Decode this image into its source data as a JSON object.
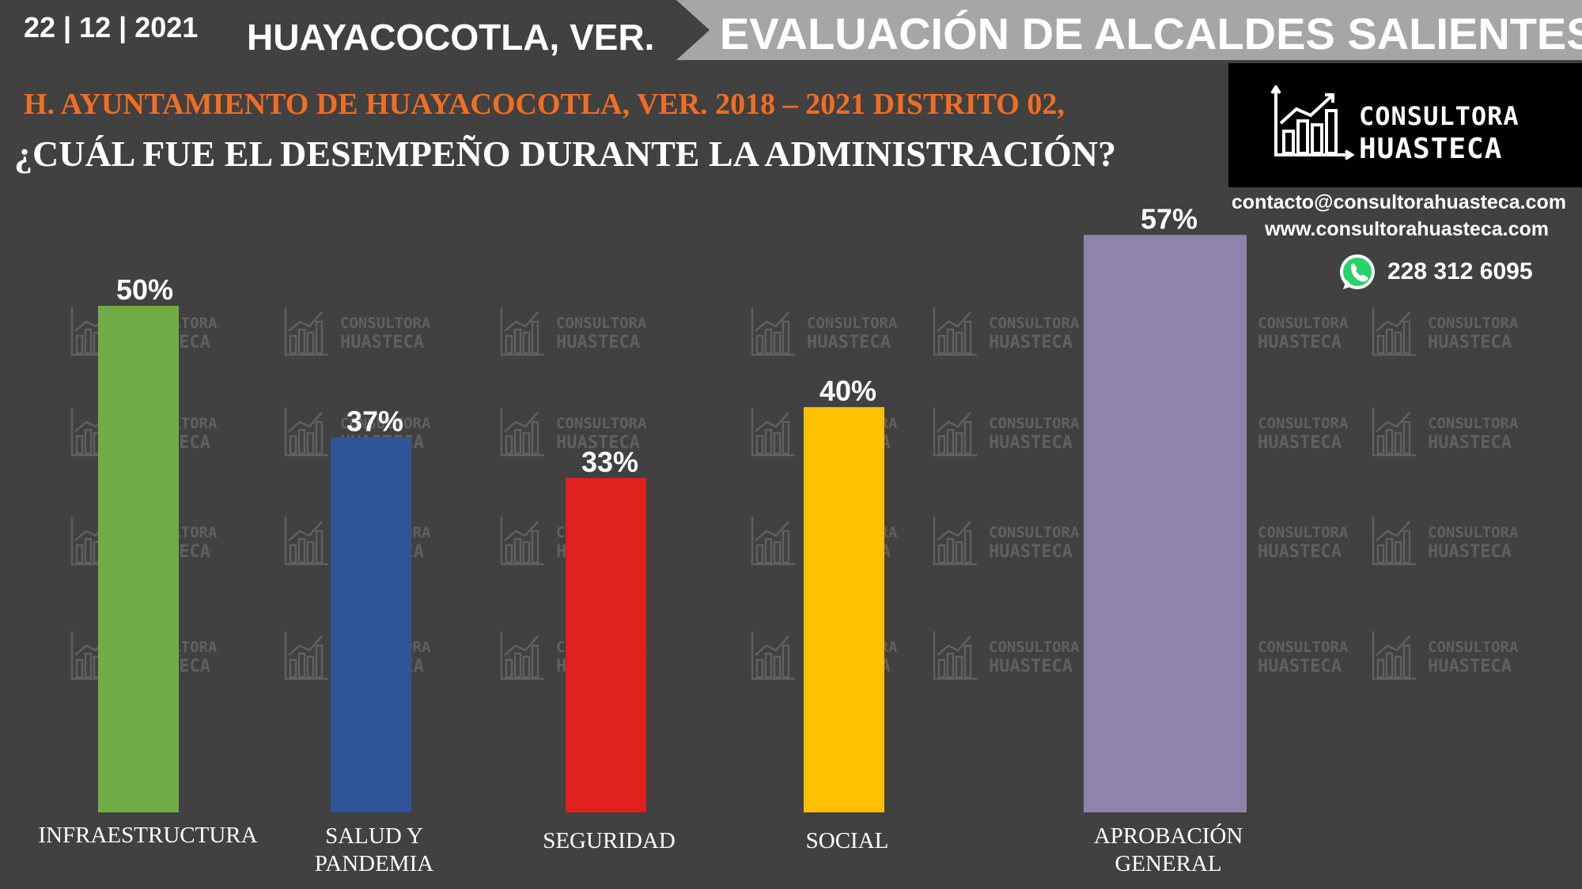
{
  "header": {
    "date": "22 | 12 | 2021",
    "city": "HUAYACOCOTLA, VER.",
    "banner": "EVALUACIÓN DE ALCALDES SALIENTES"
  },
  "subtitle": "H. AYUNTAMIENTO DE HUAYACOCOTLA, VER. 2018 – 2021 DISTRITO 02,",
  "question": "¿CUÁL FUE EL DESEMPEÑO DURANTE LA ADMINISTRACIÓN?",
  "brand": {
    "line1": "CONSULTORA",
    "line2": "HUASTECA",
    "email": "contacto@consultorahuasteca.com",
    "web": "www.consultorahuasteca.com",
    "phone": "228 312 6095",
    "icon": "whatsapp-icon",
    "logo_icon": "chart-growth-icon"
  },
  "colors": {
    "background": "#414141",
    "accent": "#f26d21",
    "banner": "#a6a6a6"
  },
  "chart_data": {
    "type": "bar",
    "categories": [
      "INFRAESTRUCTURA",
      "SALUD Y PANDEMIA",
      "SEGURIDAD",
      "SOCIAL",
      "APROBACIÓN GENERAL"
    ],
    "values": [
      50,
      37,
      33,
      40,
      57
    ],
    "value_labels": [
      "50%",
      "37%",
      "33%",
      "40%",
      "57%"
    ],
    "colors": [
      "#70ad47",
      "#2f5597",
      "#e0201d",
      "#ffc000",
      "#8e84ab"
    ],
    "ylim": [
      0,
      57
    ],
    "grid": false,
    "legend": "none"
  }
}
